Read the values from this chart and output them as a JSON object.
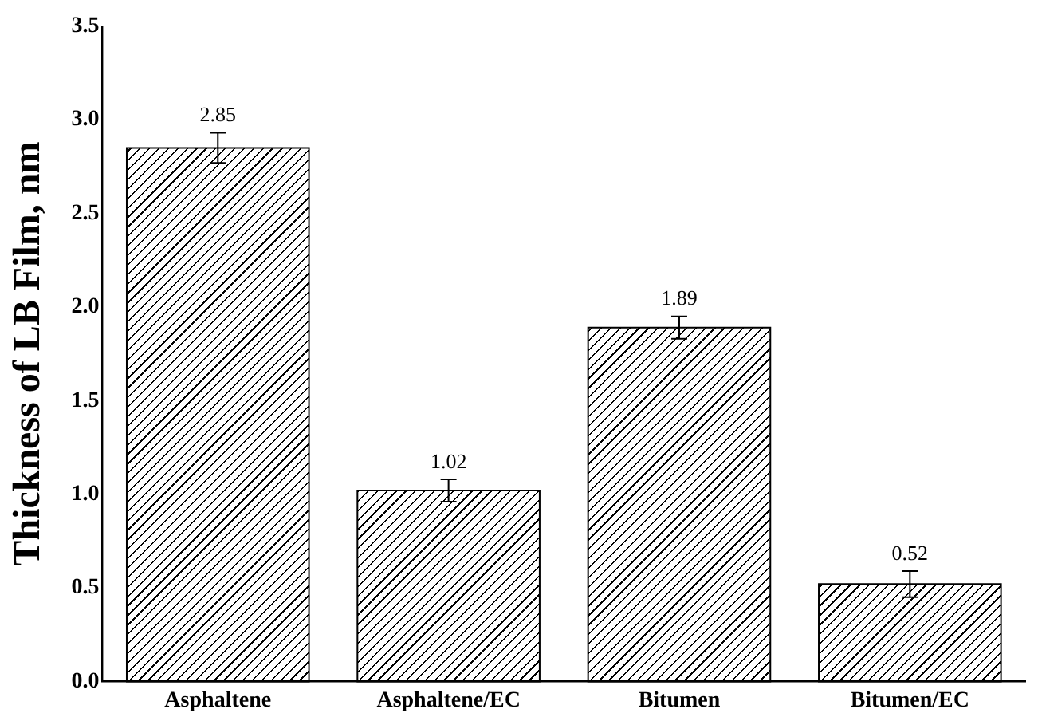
{
  "chart_data": {
    "type": "bar",
    "ylabel": "Thickness of LB Film, nm",
    "categories": [
      "Asphaltene",
      "Asphaltene/EC",
      "Bitumen",
      "Bitumen/EC"
    ],
    "values": [
      2.85,
      1.02,
      1.89,
      0.52
    ],
    "errors": [
      0.08,
      0.06,
      0.06,
      0.07
    ],
    "color": "#000000",
    "ylim": [
      0,
      3.5
    ],
    "yticks": [
      {
        "value": 0,
        "label": "0.0"
      },
      {
        "value": 0.5,
        "label": "0.5"
      },
      {
        "value": 1,
        "label": "1.0"
      },
      {
        "value": 1.5,
        "label": "1.5"
      },
      {
        "value": 2,
        "label": "2.0"
      },
      {
        "value": 2.5,
        "label": "2.5"
      },
      {
        "value": 3,
        "label": "3.0"
      },
      {
        "value": 3.5,
        "label": "3.5"
      }
    ],
    "data_labels": true,
    "grid": false,
    "legend": false
  }
}
